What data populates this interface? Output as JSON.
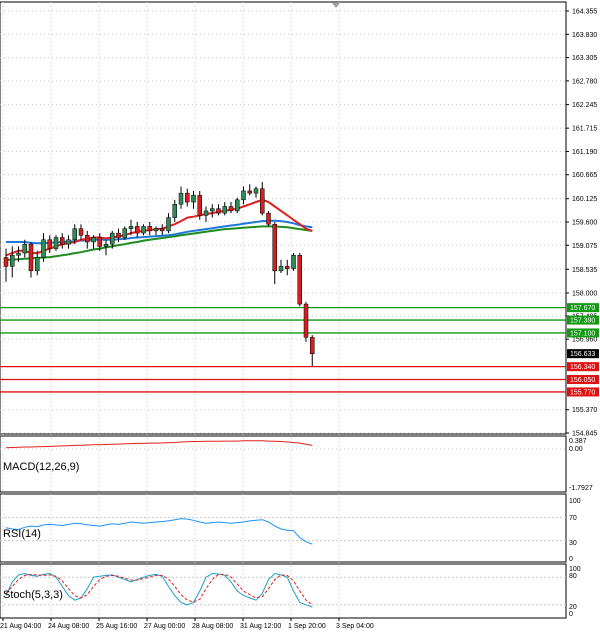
{
  "colors": {
    "bull": "#2e8b57",
    "bear": "#d21f1f",
    "ma_fast": "#e02020",
    "ma_mid": "#1e78dc",
    "ma_slow": "#1e8c1e",
    "support": "#e01010",
    "resistance": "#119911",
    "grid": "#c8c8c8",
    "rsi": "#1e90ff",
    "stoch_main": "#1aa0c8",
    "stoch_signal": "#e02020",
    "macd": "#e02020"
  },
  "price_axis": {
    "ticks": [
      "164.355",
      "163.830",
      "163.305",
      "162.780",
      "162.245",
      "161.715",
      "161.190",
      "160.665",
      "160.125",
      "159.600",
      "159.075",
      "158.535",
      "158.000",
      "157.485",
      "156.960",
      "155.370",
      "154.845"
    ],
    "tick_values": [
      164.355,
      163.83,
      163.305,
      162.78,
      162.245,
      161.715,
      161.19,
      160.665,
      160.125,
      159.6,
      159.075,
      158.535,
      158.0,
      157.485,
      156.96,
      155.37,
      154.845
    ],
    "current_price": "156.633",
    "partial_ticks": [
      "156.4",
      "155.899"
    ]
  },
  "levels": {
    "resistance": [
      {
        "label": "157.670",
        "value": 157.67
      },
      {
        "label": "157.390",
        "value": 157.39
      },
      {
        "label": "157.100",
        "value": 157.1
      }
    ],
    "support": [
      {
        "label": "156.340",
        "value": 156.34
      },
      {
        "label": "156.050",
        "value": 156.05
      },
      {
        "label": "155.770",
        "value": 155.77
      }
    ]
  },
  "time_axis": [
    "21 Aug 04:00",
    "24 Aug 08:00",
    "25 Aug 16:00",
    "27 Aug 00:00",
    "28 Aug 08:00",
    "31 Aug 12:00",
    "1 Sep 20:00",
    "3 Sep 04:00"
  ],
  "indicators": {
    "macd": {
      "title": "MACD(12,26,9)",
      "ticks": [
        "0.387",
        "0.00",
        "-1.7927"
      ]
    },
    "rsi": {
      "title": "RSI(14)",
      "ticks": [
        "100",
        "70",
        "30",
        "0"
      ]
    },
    "stoch": {
      "title": "Stoch(5,3,3)",
      "ticks": [
        "100",
        "80",
        "20",
        "0"
      ]
    }
  },
  "chart_data": {
    "type": "candlestick",
    "instrument_price_range": [
      154.845,
      164.355
    ],
    "candles": [
      {
        "o": 158.8,
        "h": 159.0,
        "l": 158.25,
        "c": 158.6
      },
      {
        "o": 158.6,
        "h": 159.05,
        "l": 158.35,
        "c": 158.85
      },
      {
        "o": 158.85,
        "h": 159.05,
        "l": 158.7,
        "c": 158.9
      },
      {
        "o": 158.9,
        "h": 159.2,
        "l": 158.8,
        "c": 159.1
      },
      {
        "o": 159.1,
        "h": 159.15,
        "l": 158.35,
        "c": 158.5
      },
      {
        "o": 158.5,
        "h": 158.95,
        "l": 158.4,
        "c": 158.8
      },
      {
        "o": 158.8,
        "h": 159.35,
        "l": 158.7,
        "c": 159.2
      },
      {
        "o": 159.2,
        "h": 159.3,
        "l": 158.9,
        "c": 159.0
      },
      {
        "o": 159.0,
        "h": 159.3,
        "l": 158.95,
        "c": 159.25
      },
      {
        "o": 159.25,
        "h": 159.35,
        "l": 159.0,
        "c": 159.1
      },
      {
        "o": 159.1,
        "h": 159.3,
        "l": 159.0,
        "c": 159.2
      },
      {
        "o": 159.2,
        "h": 159.55,
        "l": 159.1,
        "c": 159.45
      },
      {
        "o": 159.45,
        "h": 159.55,
        "l": 159.2,
        "c": 159.3
      },
      {
        "o": 159.3,
        "h": 159.4,
        "l": 159.0,
        "c": 159.15
      },
      {
        "o": 159.15,
        "h": 159.3,
        "l": 159.0,
        "c": 159.25
      },
      {
        "o": 159.25,
        "h": 159.35,
        "l": 158.95,
        "c": 159.05
      },
      {
        "o": 159.05,
        "h": 159.2,
        "l": 158.85,
        "c": 159.1
      },
      {
        "o": 159.1,
        "h": 159.4,
        "l": 159.0,
        "c": 159.35
      },
      {
        "o": 159.35,
        "h": 159.45,
        "l": 159.15,
        "c": 159.25
      },
      {
        "o": 159.25,
        "h": 159.5,
        "l": 159.2,
        "c": 159.45
      },
      {
        "o": 159.45,
        "h": 159.65,
        "l": 159.3,
        "c": 159.5
      },
      {
        "o": 159.5,
        "h": 159.6,
        "l": 159.25,
        "c": 159.35
      },
      {
        "o": 159.35,
        "h": 159.55,
        "l": 159.3,
        "c": 159.5
      },
      {
        "o": 159.5,
        "h": 159.6,
        "l": 159.3,
        "c": 159.4
      },
      {
        "o": 159.4,
        "h": 159.5,
        "l": 159.3,
        "c": 159.45
      },
      {
        "o": 159.45,
        "h": 159.55,
        "l": 159.3,
        "c": 159.4
      },
      {
        "o": 159.4,
        "h": 159.8,
        "l": 159.35,
        "c": 159.7
      },
      {
        "o": 159.7,
        "h": 160.1,
        "l": 159.6,
        "c": 160.0
      },
      {
        "o": 160.0,
        "h": 160.4,
        "l": 159.9,
        "c": 160.25
      },
      {
        "o": 160.25,
        "h": 160.35,
        "l": 159.95,
        "c": 160.05
      },
      {
        "o": 160.05,
        "h": 160.3,
        "l": 159.9,
        "c": 160.2
      },
      {
        "o": 160.2,
        "h": 160.3,
        "l": 159.65,
        "c": 159.75
      },
      {
        "o": 159.75,
        "h": 159.95,
        "l": 159.6,
        "c": 159.85
      },
      {
        "o": 159.85,
        "h": 160.0,
        "l": 159.7,
        "c": 159.9
      },
      {
        "o": 159.9,
        "h": 160.0,
        "l": 159.75,
        "c": 159.8
      },
      {
        "o": 159.8,
        "h": 160.05,
        "l": 159.75,
        "c": 159.95
      },
      {
        "o": 159.95,
        "h": 160.05,
        "l": 159.8,
        "c": 159.85
      },
      {
        "o": 159.85,
        "h": 160.15,
        "l": 159.8,
        "c": 160.1
      },
      {
        "o": 160.1,
        "h": 160.4,
        "l": 160.0,
        "c": 160.3
      },
      {
        "o": 160.3,
        "h": 160.45,
        "l": 160.2,
        "c": 160.25
      },
      {
        "o": 160.25,
        "h": 160.4,
        "l": 160.15,
        "c": 160.35
      },
      {
        "o": 160.35,
        "h": 160.5,
        "l": 159.75,
        "c": 159.8
      },
      {
        "o": 159.8,
        "h": 159.85,
        "l": 159.5,
        "c": 159.55
      },
      {
        "o": 159.55,
        "h": 159.6,
        "l": 158.2,
        "c": 158.5
      },
      {
        "o": 158.5,
        "h": 158.75,
        "l": 158.45,
        "c": 158.6
      },
      {
        "o": 158.6,
        "h": 158.75,
        "l": 158.4,
        "c": 158.55
      },
      {
        "o": 158.55,
        "h": 158.9,
        "l": 158.5,
        "c": 158.85
      },
      {
        "o": 158.85,
        "h": 158.9,
        "l": 157.7,
        "c": 157.75
      },
      {
        "o": 157.75,
        "h": 157.8,
        "l": 156.9,
        "c": 157.0
      },
      {
        "o": 157.0,
        "h": 157.05,
        "l": 156.35,
        "c": 156.63
      }
    ],
    "ma_fast": [
      158.85,
      158.9,
      158.95,
      158.95,
      158.9,
      158.9,
      158.95,
      159.0,
      159.05,
      159.1,
      159.12,
      159.15,
      159.2,
      159.22,
      159.25,
      159.25,
      159.23,
      159.25,
      159.28,
      159.3,
      159.35,
      159.38,
      159.4,
      159.42,
      159.44,
      159.45,
      159.5,
      159.55,
      159.62,
      159.7,
      159.72,
      159.75,
      159.78,
      159.8,
      159.83,
      159.85,
      159.88,
      159.9,
      159.95,
      160.0,
      160.05,
      160.1,
      160.05,
      159.95,
      159.85,
      159.75,
      159.65,
      159.55,
      159.45,
      159.4
    ],
    "ma_mid": [
      159.15,
      159.15,
      159.15,
      159.15,
      159.13,
      159.12,
      159.12,
      159.13,
      159.14,
      159.15,
      159.16,
      159.17,
      159.18,
      159.19,
      159.2,
      159.2,
      159.2,
      159.2,
      159.21,
      159.22,
      159.24,
      159.25,
      159.26,
      159.27,
      159.28,
      159.29,
      159.3,
      159.32,
      159.35,
      159.38,
      159.4,
      159.42,
      159.44,
      159.46,
      159.48,
      159.5,
      159.52,
      159.54,
      159.56,
      159.58,
      159.6,
      159.62,
      159.63,
      159.63,
      159.62,
      159.6,
      159.57,
      159.53,
      159.5,
      159.48
    ],
    "ma_slow": [
      158.75,
      158.75,
      158.76,
      158.77,
      158.78,
      158.79,
      158.8,
      158.81,
      158.83,
      158.85,
      158.87,
      158.9,
      158.92,
      158.95,
      158.98,
      159.0,
      159.03,
      159.05,
      159.08,
      159.1,
      159.13,
      159.15,
      159.18,
      159.2,
      159.22,
      159.24,
      159.26,
      159.28,
      159.3,
      159.32,
      159.34,
      159.36,
      159.38,
      159.4,
      159.42,
      159.44,
      159.45,
      159.46,
      159.47,
      159.48,
      159.49,
      159.5,
      159.5,
      159.5,
      159.49,
      159.48,
      159.46,
      159.44,
      159.42,
      159.4
    ],
    "macd_values": [
      0.05,
      0.06,
      0.07,
      0.08,
      0.08,
      0.09,
      0.1,
      0.11,
      0.12,
      0.13,
      0.14,
      0.15,
      0.16,
      0.17,
      0.18,
      0.18,
      0.19,
      0.2,
      0.21,
      0.22,
      0.23,
      0.24,
      0.24,
      0.25,
      0.25,
      0.26,
      0.27,
      0.28,
      0.3,
      0.31,
      0.32,
      0.32,
      0.33,
      0.33,
      0.33,
      0.34,
      0.34,
      0.34,
      0.35,
      0.35,
      0.35,
      0.35,
      0.34,
      0.33,
      0.32,
      0.3,
      0.28,
      0.25,
      0.2,
      0.15
    ],
    "macd_range": [
      -1.7927,
      0.387
    ],
    "rsi_values": [
      52,
      50,
      49,
      53,
      55,
      54,
      57,
      58,
      57,
      56,
      58,
      60,
      59,
      57,
      56,
      55,
      57,
      59,
      58,
      60,
      62,
      61,
      60,
      61,
      62,
      63,
      64,
      66,
      68,
      67,
      65,
      62,
      60,
      61,
      62,
      61,
      60,
      61,
      62,
      64,
      65,
      66,
      62,
      55,
      50,
      48,
      47,
      35,
      28,
      24
    ],
    "stoch_k": [
      40,
      70,
      85,
      88,
      84,
      82,
      86,
      88,
      80,
      60,
      40,
      30,
      35,
      55,
      80,
      82,
      84,
      85,
      80,
      75,
      70,
      75,
      80,
      84,
      86,
      82,
      60,
      40,
      25,
      20,
      25,
      50,
      80,
      88,
      87,
      84,
      70,
      50,
      40,
      35,
      30,
      45,
      75,
      88,
      85,
      80,
      50,
      25,
      20,
      15
    ],
    "stoch_d": [
      45,
      60,
      75,
      84,
      86,
      85,
      84,
      85,
      82,
      72,
      55,
      40,
      35,
      42,
      60,
      75,
      82,
      84,
      82,
      78,
      74,
      74,
      77,
      80,
      84,
      84,
      76,
      60,
      42,
      30,
      26,
      32,
      55,
      75,
      86,
      86,
      80,
      65,
      50,
      42,
      35,
      38,
      55,
      75,
      85,
      84,
      72,
      50,
      30,
      20
    ]
  }
}
